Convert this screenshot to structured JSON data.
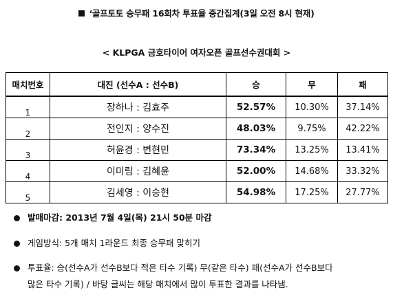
{
  "header": {
    "title": "‘골프토토 승무패 16회차 투표율 중간집계(3일 오전 8시 현재)",
    "subtitle": "< KLPGA 금호타이어 여자오픈 골프선수권대회 >"
  },
  "table": {
    "columns": [
      "매치번호",
      "대진 (선수A : 선수B)",
      "승",
      "무",
      "패"
    ],
    "rows": [
      {
        "num": "1",
        "match": "장하나 : 김효주",
        "win": "52.57%",
        "draw": "10.30%",
        "lose": "37.14%"
      },
      {
        "num": "2",
        "match": "전인지 : 양수진",
        "win": "48.03%",
        "draw": "9.75%",
        "lose": "42.22%"
      },
      {
        "num": "3",
        "match": "허윤경 : 변현민",
        "win": "73.34%",
        "draw": "13.25%",
        "lose": "13.41%"
      },
      {
        "num": "4",
        "match": "이미림 : 김혜윤",
        "win": "52.00%",
        "draw": "14.68%",
        "lose": "33.32%"
      },
      {
        "num": "5",
        "match": "김세영 : 이승현",
        "win": "54.98%",
        "draw": "17.25%",
        "lose": "27.77%"
      }
    ]
  },
  "notes": {
    "deadline": "발매마감: 2013년 7월 4일(목) 21시 50분 마감",
    "method": "게임방식: 5개 매치 1라운드 최종 승무패 맞히기",
    "vote_line1": "투표율: 승(선수A가 선수B보다 적은 타수 기록) 무(같은 타수) 패(선수A가 선수B보다",
    "vote_line2": "많은 타수 기록) / 바탕 글씨는 해당 매치에서 많이 투표한 결과를 나타냄."
  }
}
